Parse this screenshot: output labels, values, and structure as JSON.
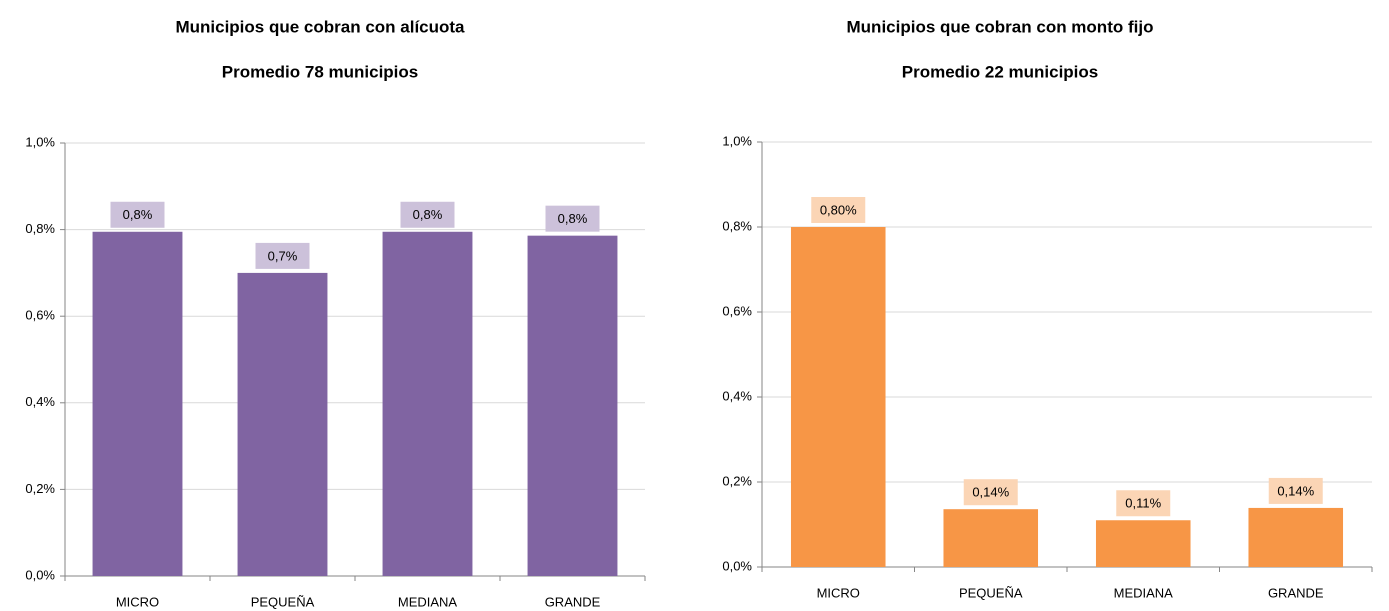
{
  "chart_data": [
    {
      "type": "bar",
      "title": "Municipios que cobran con alícuota",
      "subtitle": "Promedio 78 municipios",
      "categories": [
        "MICRO",
        "PEQUEÑA",
        "MEDIANA",
        "GRANDE"
      ],
      "values": [
        0.795,
        0.7,
        0.795,
        0.786
      ],
      "value_labels": [
        "0,8%",
        "0,7%",
        "0,8%",
        "0,8%"
      ],
      "color": "#8064a2",
      "label_color": "#ccc1da",
      "ylim": [
        0,
        1
      ],
      "yticks": [
        {
          "value": 0,
          "label": "0,0%"
        },
        {
          "value": 0.2,
          "label": "0,2%"
        },
        {
          "value": 0.4,
          "label": "0,4%"
        },
        {
          "value": 0.6,
          "label": "0,6%"
        },
        {
          "value": 0.8,
          "label": "0,8%"
        },
        {
          "value": 1,
          "label": "1,0%"
        }
      ],
      "grid": true
    },
    {
      "type": "bar",
      "title": "Municipios que cobran con monto fijo",
      "subtitle": "Promedio 22 municipios",
      "categories": [
        "MICRO",
        "PEQUEÑA",
        "MEDIANA",
        "GRANDE"
      ],
      "values": [
        0.8,
        0.136,
        0.11,
        0.139
      ],
      "value_labels": [
        "0,80%",
        "0,14%",
        "0,11%",
        "0,14%"
      ],
      "color": "#f79646",
      "label_color": "#fbd5b5",
      "ylim": [
        0,
        1
      ],
      "yticks": [
        {
          "value": 0,
          "label": "0,0%"
        },
        {
          "value": 0.2,
          "label": "0,2%"
        },
        {
          "value": 0.4,
          "label": "0,4%"
        },
        {
          "value": 0.6,
          "label": "0,6%"
        },
        {
          "value": 0.8,
          "label": "0,8%"
        },
        {
          "value": 1,
          "label": "1,0%"
        }
      ],
      "grid": true
    }
  ]
}
